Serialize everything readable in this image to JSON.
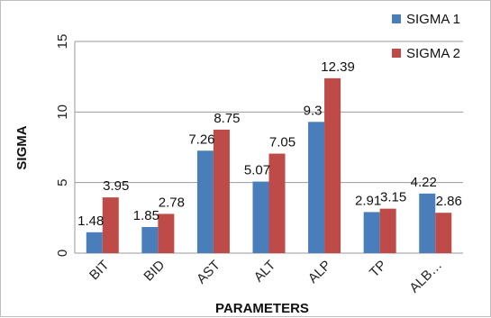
{
  "chart_data": {
    "type": "bar",
    "categories": [
      "BIT",
      "BID",
      "AST",
      "ALT",
      "ALP",
      "TP",
      "ALB…"
    ],
    "series": [
      {
        "name": "SIGMA 1",
        "values": [
          1.48,
          1.85,
          7.26,
          5.07,
          9.3,
          2.91,
          4.22
        ],
        "color": "#4a7ebb"
      },
      {
        "name": "SIGMA 2",
        "values": [
          3.95,
          2.78,
          8.75,
          7.05,
          12.39,
          3.15,
          2.86
        ],
        "color": "#be4b48"
      }
    ],
    "data_labels": [
      [
        "1.48",
        "1.85",
        "7.26",
        "5.07",
        "9.3",
        "2.91",
        "4.22"
      ],
      [
        "3.95",
        "2.78",
        "8.75",
        "7.05",
        "12.39",
        "3.15",
        "2.86"
      ]
    ],
    "title": "",
    "xlabel": "PARAMETERS",
    "ylabel": "SIGMA",
    "ylim": [
      0,
      15
    ],
    "yticks": [
      "0",
      "5",
      "10",
      "15"
    ],
    "grid": true,
    "legend_position": "top-right"
  }
}
